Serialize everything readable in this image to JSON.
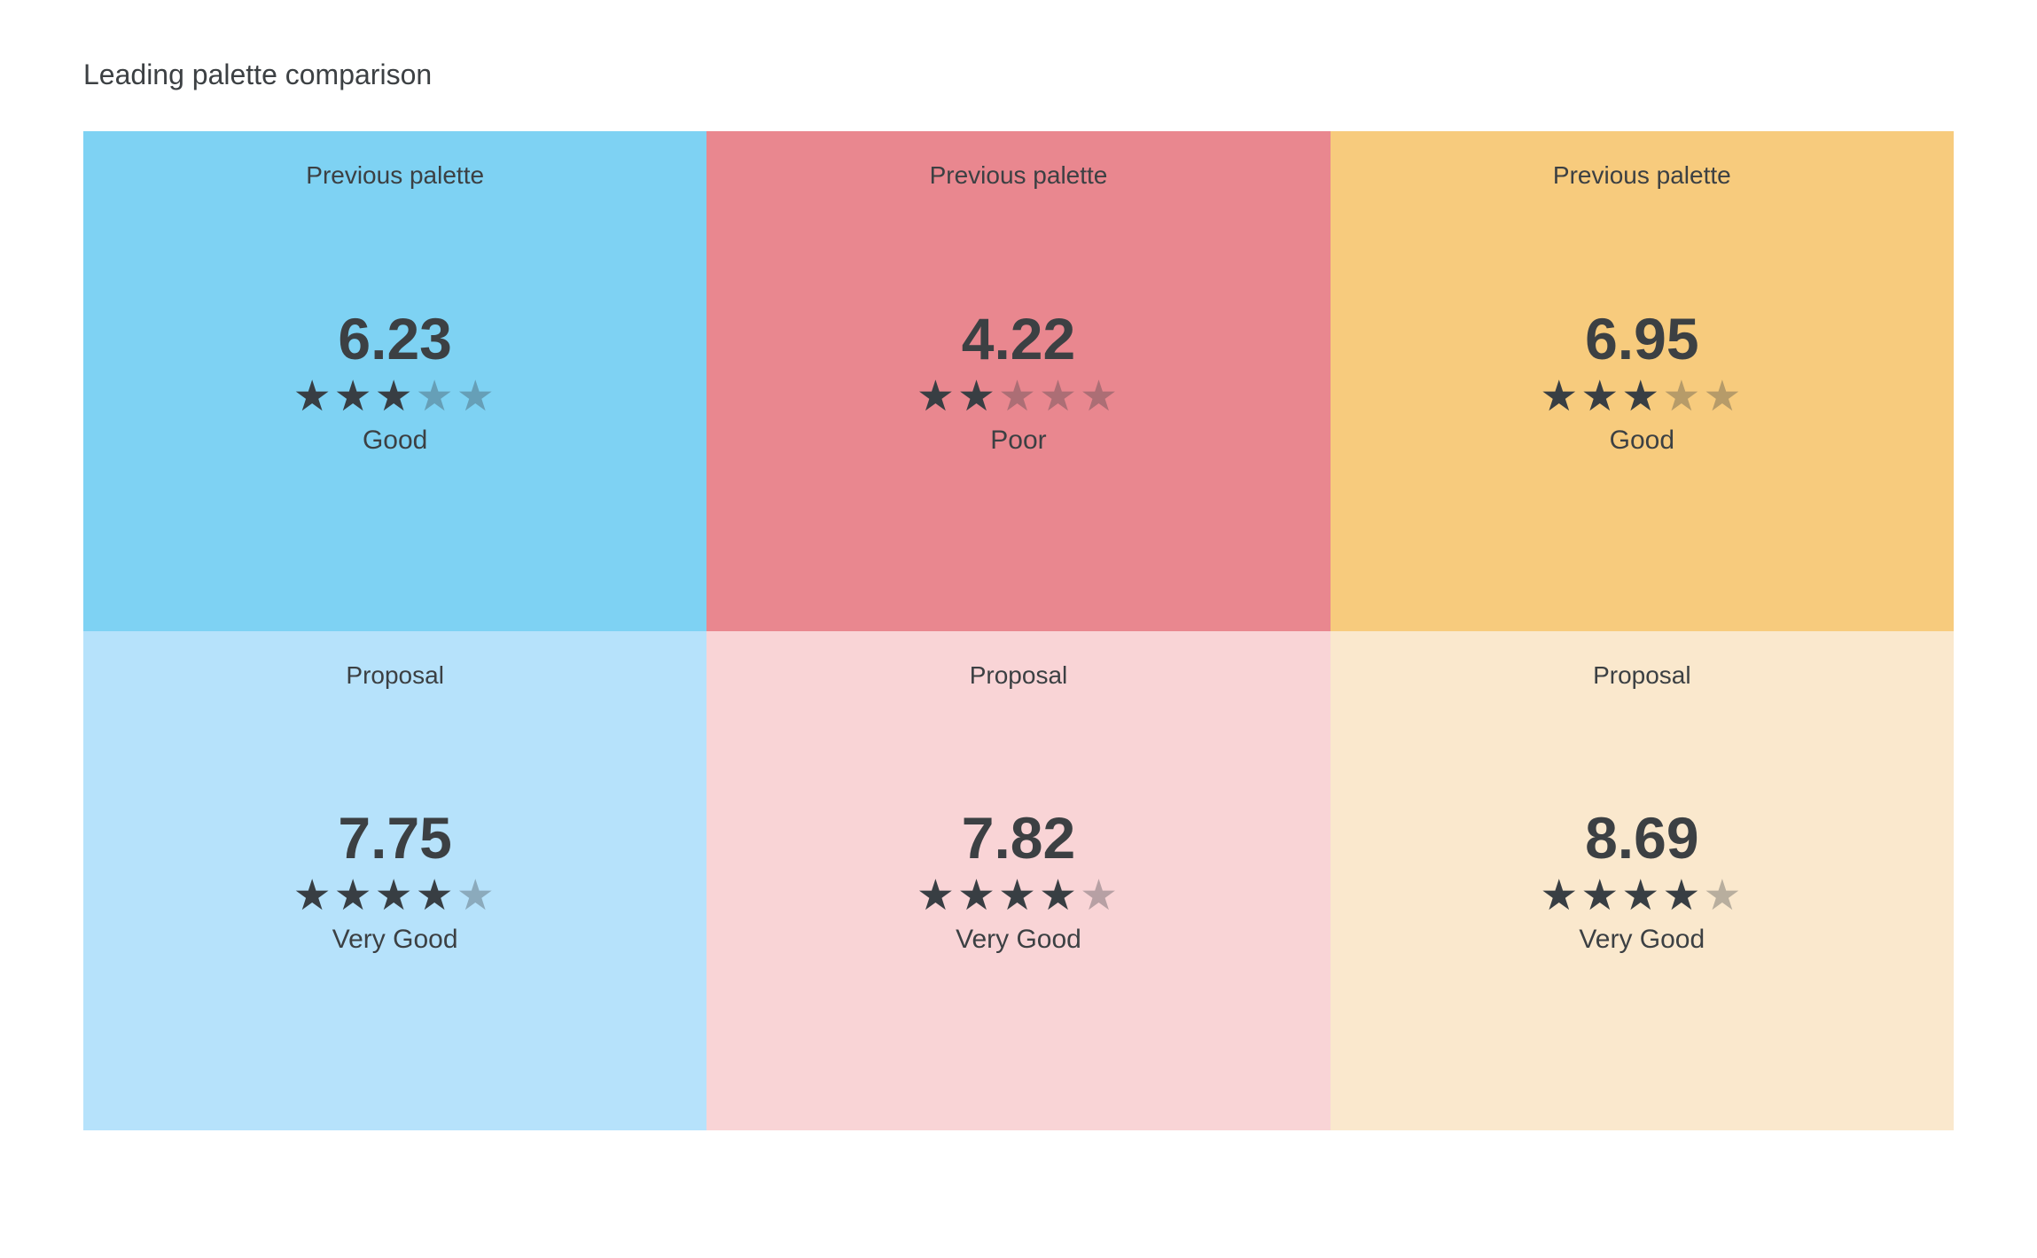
{
  "page": {
    "title": "Leading palette comparison",
    "background": "#ffffff"
  },
  "colors": {
    "text": "#3c4043",
    "star_filled": "#383e43",
    "star_empty": "rgba(55,61,67,0.34)"
  },
  "stars": {
    "glyph": "★",
    "max": 5
  },
  "cells": [
    {
      "label": "Previous palette",
      "score": "6.23",
      "stars": 3,
      "rating": "Good",
      "bg": "#7ed2f3"
    },
    {
      "label": "Previous palette",
      "score": "4.22",
      "stars": 2,
      "rating": "Poor",
      "bg": "#e9878f"
    },
    {
      "label": "Previous palette",
      "score": "6.95",
      "stars": 3,
      "rating": "Good",
      "bg": "#f7cb7d"
    },
    {
      "label": "Proposal",
      "score": "7.75",
      "stars": 4,
      "rating": "Very Good",
      "bg": "#b6e2fb"
    },
    {
      "label": "Proposal",
      "score": "7.82",
      "stars": 4,
      "rating": "Very Good",
      "bg": "#f9d4d6"
    },
    {
      "label": "Proposal",
      "score": "8.69",
      "stars": 4,
      "rating": "Very Good",
      "bg": "#fae8cd"
    }
  ],
  "chart_data": {
    "type": "table",
    "title": "Leading palette comparison",
    "categories": [
      "blue",
      "red",
      "orange"
    ],
    "series": [
      {
        "name": "Previous palette",
        "values": [
          6.23,
          4.22,
          6.95
        ],
        "star_ratings": [
          3,
          2,
          3
        ],
        "labels": [
          "Good",
          "Poor",
          "Good"
        ]
      },
      {
        "name": "Proposal",
        "values": [
          7.75,
          7.82,
          8.69
        ],
        "star_ratings": [
          4,
          4,
          4
        ],
        "labels": [
          "Very Good",
          "Very Good",
          "Very Good"
        ]
      }
    ],
    "stars_max": 5,
    "layout": "2 rows x 3 columns scorecard grid, row 1 = Previous palette (saturated fills), row 2 = Proposal (pale fills)"
  }
}
